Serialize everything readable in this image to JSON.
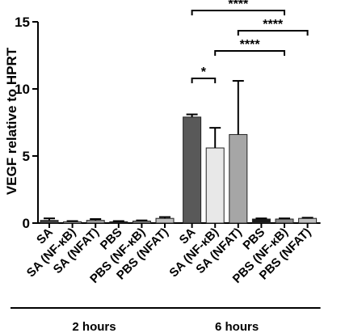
{
  "chart_data": {
    "type": "bar",
    "ylabel": "VEGF relative to HPRT",
    "ylim": [
      0,
      15
    ],
    "yticks": [
      0,
      5,
      10,
      15
    ],
    "categories": [
      "SA",
      "SA (NF-κB)",
      "SA (NFAT)",
      "PBS",
      "PBS (NF-κB)",
      "PBS (NFAT)",
      "SA",
      "SA (NF-κB)",
      "SA (NFAT)",
      "PBS",
      "PBS (NF-κB)",
      "PBS (NFAT)"
    ],
    "values": [
      0.2,
      0.1,
      0.2,
      0.1,
      0.15,
      0.35,
      7.9,
      5.6,
      6.6,
      0.3,
      0.3,
      0.35
    ],
    "errors": [
      0.15,
      0.05,
      0.1,
      0.05,
      0.05,
      0.1,
      0.2,
      1.5,
      4.0,
      0.05,
      0.05,
      0.05
    ],
    "bar_colors": [
      "#404040",
      "#d9d9d9",
      "#a6a6a6",
      "#1a1a1a",
      "#888888",
      "#bfbfbf",
      "#595959",
      "#e8e8e8",
      "#a6a6a6",
      "#1a1a1a",
      "#8c8c8c",
      "#bfbfbf"
    ],
    "groups": [
      {
        "label": "2 hours",
        "start": 0,
        "end": 5
      },
      {
        "label": "6 hours",
        "start": 6,
        "end": 11
      }
    ],
    "significance": [
      {
        "from": 6,
        "to": 7,
        "label": "*"
      },
      {
        "from": 6,
        "to": 10,
        "label": "****"
      },
      {
        "from": 7,
        "to": 10,
        "label": "****"
      },
      {
        "from": 8,
        "to": 11,
        "label": "****"
      }
    ],
    "grid": false,
    "legend": "none"
  }
}
